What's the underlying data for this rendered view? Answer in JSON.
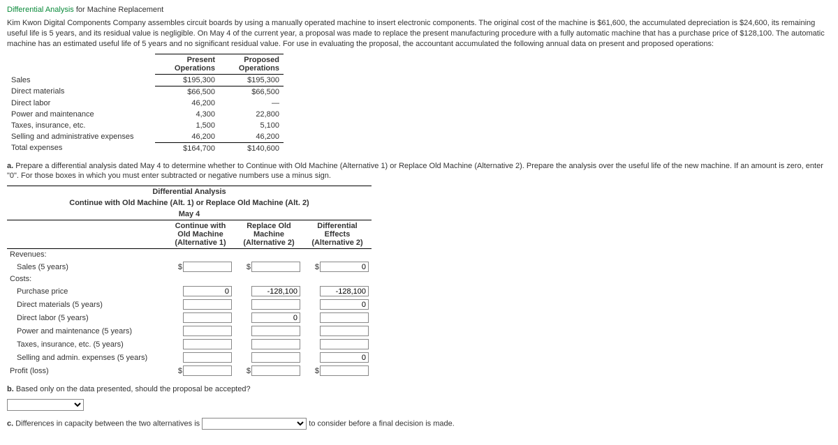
{
  "title_link": "Differential Analysis",
  "title_rest": " for Machine Replacement",
  "intro1": "Kim Kwon Digital Components Company assembles circuit boards by using a manually operated machine to insert electronic components. The original cost of the machine is $61,600, the accumulated depreciation is $24,600, its remaining useful life is 5 years, and its residual value is negligible. On May 4 of the current year, a proposal was made to replace the present manufacturing procedure with a fully automatic machine that has a purchase price of $128,100. The automatic machine has an estimated useful life of 5 years and no significant residual value. For use in evaluating the proposal, the accountant accumulated the following annual data on present and proposed operations:",
  "ops": {
    "hdr_present": "Present Operations",
    "hdr_proposed": "Proposed Operations",
    "rows": [
      {
        "label": "Sales",
        "present": "$195,300",
        "proposed": "$195,300",
        "rule": "uline"
      },
      {
        "label": "Direct materials",
        "present": "$66,500",
        "proposed": "$66,500"
      },
      {
        "label": "Direct labor",
        "present": "46,200",
        "proposed": "—"
      },
      {
        "label": "Power and maintenance",
        "present": "4,300",
        "proposed": "22,800"
      },
      {
        "label": "Taxes, insurance, etc.",
        "present": "1,500",
        "proposed": "5,100"
      },
      {
        "label": "Selling and administrative expenses",
        "present": "46,200",
        "proposed": "46,200",
        "rule": "uline"
      },
      {
        "label": "Total expenses",
        "present": "$164,700",
        "proposed": "$140,600"
      }
    ]
  },
  "qa_text": "Prepare a differential analysis dated May 4 to determine whether to Continue with Old Machine (Alternative 1) or Replace Old Machine (Alternative 2). Prepare the analysis over the useful life of the new machine. If an amount is zero, enter \"0\". For those boxes in which you must enter subtracted or negative numbers use a minus sign.",
  "diff": {
    "title1": "Differential Analysis",
    "title2": "Continue with Old Machine (Alt. 1) or Replace Old Machine (Alt. 2)",
    "title3": "May 4",
    "col1": "Continue with Old Machine (Alternative 1)",
    "col2": "Replace Old Machine (Alternative 2)",
    "col3": "Differential Effects (Alternative 2)",
    "rows": [
      {
        "label": "Revenues:",
        "type": "header"
      },
      {
        "label": "Sales (5 years)",
        "type": "money",
        "indent": 1,
        "v": [
          "",
          "",
          "0"
        ]
      },
      {
        "label": "Costs:",
        "type": "header"
      },
      {
        "label": "Purchase price",
        "type": "plain",
        "indent": 1,
        "v": [
          "0",
          "-128,100",
          "-128,100"
        ]
      },
      {
        "label": "Direct materials (5 years)",
        "type": "plain",
        "indent": 1,
        "v": [
          "",
          "",
          "0"
        ]
      },
      {
        "label": "Direct labor (5 years)",
        "type": "plain",
        "indent": 1,
        "v": [
          "",
          "0",
          ""
        ]
      },
      {
        "label": "Power and maintenance (5 years)",
        "type": "plain",
        "indent": 1,
        "v": [
          "",
          "",
          ""
        ]
      },
      {
        "label": "Taxes, insurance, etc. (5 years)",
        "type": "plain",
        "indent": 1,
        "v": [
          "",
          "",
          ""
        ]
      },
      {
        "label": "Selling and admin. expenses (5 years)",
        "type": "plain",
        "indent": 1,
        "v": [
          "",
          "",
          "0"
        ]
      },
      {
        "label": "Profit (loss)",
        "type": "money",
        "v": [
          "",
          "",
          ""
        ]
      }
    ]
  },
  "qb_text": "Based only on the data presented, should the proposal be accepted?",
  "qc_pre": "Differences in capacity between the two alternatives is ",
  "qc_post": " to consider before a final decision is made."
}
